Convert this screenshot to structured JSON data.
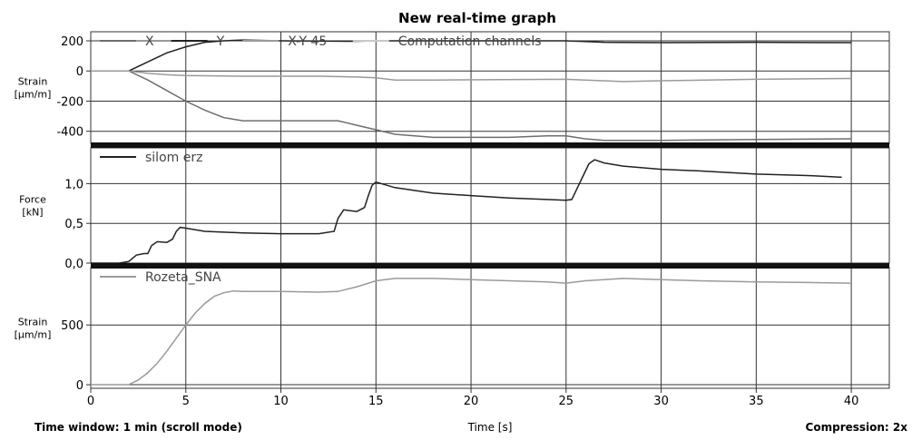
{
  "header": {
    "title": "New real-time graph"
  },
  "footer": {
    "time_window": "Time window: 1 min (scroll mode)",
    "xlabel": "Time [s]",
    "compression": "Compression: 2x"
  },
  "chart_data": [
    {
      "type": "line",
      "title": "New real-time graph",
      "ylabel": "Strain [µm/m]",
      "ylim": [
        -480,
        260
      ],
      "yticks": [
        200,
        0,
        -200,
        -400
      ],
      "xlim": [
        0,
        42
      ],
      "grid": true,
      "legend": "top",
      "series": [
        {
          "name": "X",
          "color": "#6e6e6e",
          "x": [
            0,
            2,
            3,
            4,
            5,
            6,
            7,
            8,
            10,
            12,
            13,
            14,
            15,
            16,
            18,
            20,
            22,
            24,
            25,
            26,
            27,
            28,
            30,
            35,
            40
          ],
          "y": [
            0,
            0,
            -60,
            -130,
            -200,
            -260,
            -310,
            -330,
            -330,
            -330,
            -330,
            -360,
            -390,
            -420,
            -440,
            -440,
            -440,
            -430,
            -430,
            -450,
            -460,
            -460,
            -460,
            -455,
            -450
          ]
        },
        {
          "name": "Y",
          "color": "#222222",
          "x": [
            0,
            2,
            3,
            4,
            5,
            6,
            7,
            8,
            10,
            12,
            14,
            15,
            18,
            20,
            25,
            27,
            30,
            35,
            40
          ],
          "y": [
            0,
            0,
            60,
            120,
            160,
            190,
            200,
            205,
            200,
            198,
            197,
            200,
            200,
            200,
            200,
            190,
            188,
            190,
            188
          ]
        },
        {
          "name": "X-Y 45",
          "color": "#9a9a9a",
          "x": [
            0,
            2,
            3,
            4,
            5,
            8,
            12,
            14,
            15,
            16,
            18,
            25,
            26,
            28,
            30,
            35,
            40
          ],
          "y": [
            0,
            0,
            -15,
            -25,
            -30,
            -35,
            -35,
            -40,
            -45,
            -60,
            -60,
            -55,
            -60,
            -70,
            -65,
            -55,
            -50
          ]
        },
        {
          "name": "Computation channels",
          "color": "#c8c8c8",
          "x": [],
          "y": []
        }
      ]
    },
    {
      "type": "line",
      "ylabel": "Force [kN]",
      "ylim": [
        0,
        1.45
      ],
      "yticks": [
        1.0,
        0.5,
        0.0
      ],
      "ytick_labels": [
        "1,0",
        "0,5",
        "0,0"
      ],
      "xlim": [
        0,
        42
      ],
      "grid": true,
      "series": [
        {
          "name": "silom erz",
          "color": "#222222",
          "x": [
            0,
            1.5,
            2.0,
            2.4,
            2.8,
            3.0,
            3.2,
            3.5,
            4.0,
            4.3,
            4.5,
            4.7,
            5.0,
            6,
            8,
            10,
            12,
            12.8,
            13.0,
            13.3,
            14.0,
            14.4,
            14.6,
            14.8,
            15.0,
            16,
            18,
            20,
            22,
            24,
            25.0,
            25.3,
            25.8,
            26.2,
            26.5,
            27,
            28,
            30,
            32,
            35,
            38,
            39.5
          ],
          "y": [
            0,
            0,
            0.02,
            0.1,
            0.12,
            0.12,
            0.22,
            0.27,
            0.26,
            0.3,
            0.4,
            0.45,
            0.44,
            0.4,
            0.38,
            0.37,
            0.37,
            0.4,
            0.56,
            0.67,
            0.65,
            0.7,
            0.85,
            0.98,
            1.02,
            0.95,
            0.88,
            0.85,
            0.82,
            0.8,
            0.79,
            0.8,
            1.05,
            1.25,
            1.3,
            1.26,
            1.22,
            1.18,
            1.16,
            1.12,
            1.1,
            1.08
          ]
        }
      ]
    },
    {
      "type": "line",
      "ylabel": "Strain [µm/m]",
      "ylim": [
        -30,
        980
      ],
      "yticks": [
        500,
        0
      ],
      "xlim": [
        0,
        42
      ],
      "xticks": [
        0,
        5,
        10,
        15,
        20,
        25,
        30,
        35,
        40
      ],
      "xlabel": "Time [s]",
      "grid": true,
      "series": [
        {
          "name": "Rozeta_SNA",
          "color": "#9a9a9a",
          "x": [
            0,
            2,
            2.5,
            3,
            3.5,
            4,
            4.5,
            5,
            5.5,
            6,
            6.5,
            7,
            7.5,
            8,
            10,
            12,
            13,
            14,
            15,
            16,
            18,
            20,
            22,
            24,
            25,
            26,
            27,
            28,
            30,
            32,
            35,
            38,
            40
          ],
          "y": [
            0,
            0,
            40,
            100,
            180,
            280,
            390,
            500,
            600,
            680,
            740,
            770,
            785,
            780,
            780,
            775,
            780,
            820,
            870,
            890,
            890,
            880,
            870,
            860,
            850,
            870,
            880,
            890,
            880,
            870,
            860,
            855,
            850
          ]
        }
      ]
    }
  ]
}
